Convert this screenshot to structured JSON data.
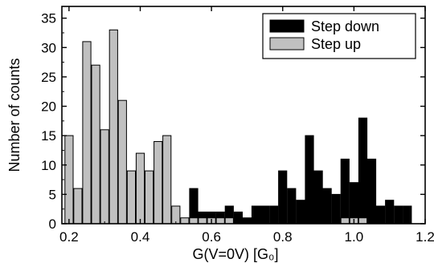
{
  "chart_data": {
    "type": "bar",
    "xlabel": "G(V=0V) [G₀]",
    "ylabel": "Number of counts",
    "xlim": [
      0.18,
      1.2
    ],
    "ylim": [
      0,
      37
    ],
    "x_ticks": [
      0.2,
      0.4,
      0.6,
      0.8,
      1.0,
      1.2
    ],
    "x_tick_labels": [
      "0.2",
      "0.4",
      "0.6",
      "0.8",
      "1.0",
      "1.2"
    ],
    "y_ticks": [
      0,
      5,
      10,
      15,
      20,
      25,
      30,
      35
    ],
    "y_tick_labels": [
      "0",
      "5",
      "10",
      "15",
      "20",
      "25",
      "30",
      "35"
    ],
    "bin_width": 0.025,
    "legend_position": "top-right",
    "series": [
      {
        "name": "Step down",
        "color": "#000000",
        "points": [
          {
            "x": 0.55,
            "y": 6
          },
          {
            "x": 0.575,
            "y": 2
          },
          {
            "x": 0.6,
            "y": 2
          },
          {
            "x": 0.625,
            "y": 2
          },
          {
            "x": 0.65,
            "y": 3
          },
          {
            "x": 0.675,
            "y": 2
          },
          {
            "x": 0.7,
            "y": 1
          },
          {
            "x": 0.725,
            "y": 3
          },
          {
            "x": 0.75,
            "y": 3
          },
          {
            "x": 0.775,
            "y": 3
          },
          {
            "x": 0.8,
            "y": 9
          },
          {
            "x": 0.825,
            "y": 6
          },
          {
            "x": 0.85,
            "y": 4
          },
          {
            "x": 0.875,
            "y": 15
          },
          {
            "x": 0.9,
            "y": 9
          },
          {
            "x": 0.925,
            "y": 6
          },
          {
            "x": 0.95,
            "y": 5
          },
          {
            "x": 0.975,
            "y": 11
          },
          {
            "x": 1.0,
            "y": 7
          },
          {
            "x": 1.025,
            "y": 18
          },
          {
            "x": 1.05,
            "y": 11
          },
          {
            "x": 1.075,
            "y": 3
          },
          {
            "x": 1.1,
            "y": 4
          },
          {
            "x": 1.125,
            "y": 3
          },
          {
            "x": 1.15,
            "y": 3
          }
        ]
      },
      {
        "name": "Step up",
        "color": "#c0c0c0",
        "points": [
          {
            "x": 0.2,
            "y": 15
          },
          {
            "x": 0.225,
            "y": 6
          },
          {
            "x": 0.25,
            "y": 31
          },
          {
            "x": 0.275,
            "y": 27
          },
          {
            "x": 0.3,
            "y": 16
          },
          {
            "x": 0.325,
            "y": 33
          },
          {
            "x": 0.35,
            "y": 21
          },
          {
            "x": 0.375,
            "y": 9
          },
          {
            "x": 0.4,
            "y": 12
          },
          {
            "x": 0.425,
            "y": 9
          },
          {
            "x": 0.45,
            "y": 14
          },
          {
            "x": 0.475,
            "y": 15
          },
          {
            "x": 0.5,
            "y": 3
          },
          {
            "x": 0.525,
            "y": 1
          },
          {
            "x": 0.55,
            "y": 1
          },
          {
            "x": 0.575,
            "y": 1
          },
          {
            "x": 0.6,
            "y": 1
          },
          {
            "x": 0.625,
            "y": 1
          },
          {
            "x": 0.65,
            "y": 1
          },
          {
            "x": 0.975,
            "y": 1
          },
          {
            "x": 1.0,
            "y": 1
          },
          {
            "x": 1.025,
            "y": 1
          }
        ]
      }
    ]
  }
}
